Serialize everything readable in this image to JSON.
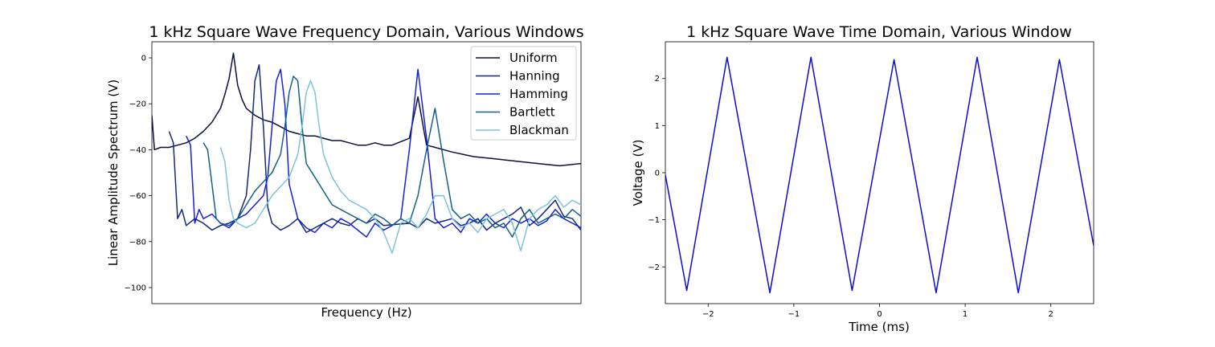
{
  "chart_data": [
    {
      "type": "line",
      "title": "1 kHz Square Wave Frequency Domain, Various Windows",
      "xlabel": "Frequency (Hz)",
      "ylabel": "Linear Amplitude Spectrum (V)",
      "x_ticks_shown": false,
      "xlim": [
        0,
        1
      ],
      "ylim": [
        -107,
        7
      ],
      "y_ticks": [
        0,
        -20,
        -40,
        -60,
        -80,
        -100
      ],
      "grid": false,
      "legend_position": "top-right",
      "series": [
        {
          "name": "Uniform",
          "color": "#0a0f3a",
          "x": [
            0,
            0.006,
            0.02,
            0.04,
            0.06,
            0.08,
            0.1,
            0.12,
            0.14,
            0.16,
            0.17,
            0.18,
            0.19,
            0.2,
            0.205,
            0.21,
            0.22,
            0.24,
            0.26,
            0.28,
            0.3,
            0.32,
            0.34,
            0.36,
            0.38,
            0.4,
            0.42,
            0.44,
            0.46,
            0.48,
            0.5,
            0.52,
            0.54,
            0.56,
            0.6,
            0.62,
            0.64,
            0.66,
            0.7,
            0.75,
            0.8,
            0.85,
            0.9,
            0.95,
            1.0
          ],
          "y": [
            -25,
            -40,
            -39,
            -39,
            -38,
            -37,
            -35,
            -32,
            -28,
            -22,
            -16,
            -9,
            2,
            -12,
            -15,
            -18,
            -22,
            -25,
            -27,
            -28,
            -30,
            -32,
            -33,
            -34,
            -34,
            -35,
            -36,
            -36,
            -37,
            -38,
            -38,
            -37,
            -38,
            -38,
            -35,
            -17,
            -38,
            -39,
            -41,
            -43,
            -44,
            -45,
            -46,
            -47,
            -46
          ]
        },
        {
          "name": "Hanning",
          "color": "#14287a",
          "x": [
            0.04,
            0.05,
            0.06,
            0.07,
            0.08,
            0.1,
            0.12,
            0.14,
            0.16,
            0.18,
            0.2,
            0.22,
            0.23,
            0.24,
            0.25,
            0.26,
            0.27,
            0.28,
            0.3,
            0.32,
            0.34,
            0.36,
            0.38,
            0.4,
            0.42,
            0.44,
            0.46,
            0.48,
            0.5,
            0.52,
            0.54,
            0.6,
            0.62,
            0.64,
            0.66,
            0.68,
            0.7,
            0.72,
            0.74,
            0.76,
            0.78,
            0.8,
            0.82,
            0.84,
            0.86,
            0.88,
            0.9,
            0.92,
            0.94,
            0.96,
            0.98,
            1.0
          ],
          "y": [
            -32,
            -37,
            -70,
            -66,
            -73,
            -70,
            -72,
            -75,
            -73,
            -72,
            -70,
            -60,
            -40,
            -10,
            -3,
            -30,
            -65,
            -72,
            -75,
            -73,
            -70,
            -76,
            -74,
            -72,
            -70,
            -72,
            -73,
            -70,
            -72,
            -70,
            -73,
            -72,
            -74,
            -70,
            -72,
            -71,
            -70,
            -73,
            -72,
            -70,
            -75,
            -72,
            -70,
            -68,
            -65,
            -73,
            -70,
            -66,
            -62,
            -69,
            -70,
            -75
          ]
        },
        {
          "name": "Hamming",
          "color": "#1520d8",
          "x": [
            0.08,
            0.09,
            0.1,
            0.11,
            0.12,
            0.14,
            0.16,
            0.18,
            0.2,
            0.22,
            0.24,
            0.26,
            0.27,
            0.28,
            0.29,
            0.3,
            0.31,
            0.32,
            0.34,
            0.36,
            0.38,
            0.4,
            0.42,
            0.44,
            0.46,
            0.48,
            0.5,
            0.52,
            0.54,
            0.56,
            0.58,
            0.6,
            0.62,
            0.64,
            0.66,
            0.68,
            0.7,
            0.72,
            0.74,
            0.76,
            0.78,
            0.8,
            0.82,
            0.84,
            0.86,
            0.88,
            0.9,
            0.92,
            0.94,
            0.96,
            0.98,
            1.0
          ],
          "y": [
            -34,
            -38,
            -72,
            -66,
            -70,
            -68,
            -72,
            -74,
            -70,
            -68,
            -64,
            -60,
            -52,
            -30,
            -10,
            -5,
            -20,
            -55,
            -70,
            -74,
            -76,
            -72,
            -74,
            -70,
            -72,
            -75,
            -78,
            -72,
            -75,
            -73,
            -70,
            -40,
            -5,
            -35,
            -70,
            -74,
            -72,
            -76,
            -70,
            -72,
            -68,
            -72,
            -74,
            -70,
            -72,
            -70,
            -73,
            -71,
            -66,
            -70,
            -72,
            -74
          ]
        },
        {
          "name": "Bartlett",
          "color": "#12608c",
          "x": [
            0.12,
            0.13,
            0.14,
            0.15,
            0.16,
            0.18,
            0.2,
            0.22,
            0.24,
            0.26,
            0.28,
            0.3,
            0.31,
            0.32,
            0.33,
            0.34,
            0.35,
            0.36,
            0.38,
            0.4,
            0.42,
            0.44,
            0.46,
            0.48,
            0.5,
            0.52,
            0.54,
            0.56,
            0.58,
            0.6,
            0.62,
            0.64,
            0.66,
            0.68,
            0.7,
            0.72,
            0.74,
            0.76,
            0.78,
            0.8,
            0.82,
            0.84,
            0.86,
            0.88,
            0.9,
            0.92,
            0.94,
            0.96,
            0.98,
            1.0
          ],
          "y": [
            -37,
            -40,
            -55,
            -70,
            -72,
            -73,
            -70,
            -64,
            -58,
            -54,
            -50,
            -42,
            -30,
            -15,
            -8,
            -10,
            -30,
            -46,
            -52,
            -58,
            -64,
            -66,
            -68,
            -70,
            -72,
            -68,
            -70,
            -73,
            -70,
            -72,
            -60,
            -40,
            -22,
            -45,
            -66,
            -70,
            -68,
            -72,
            -70,
            -74,
            -72,
            -78,
            -70,
            -66,
            -72,
            -70,
            -68,
            -70,
            -66,
            -69
          ]
        },
        {
          "name": "Blackman",
          "color": "#7cc3de",
          "x": [
            0.16,
            0.17,
            0.18,
            0.19,
            0.2,
            0.22,
            0.24,
            0.26,
            0.28,
            0.3,
            0.32,
            0.34,
            0.35,
            0.36,
            0.37,
            0.38,
            0.39,
            0.4,
            0.42,
            0.44,
            0.46,
            0.48,
            0.5,
            0.52,
            0.54,
            0.56,
            0.58,
            0.6,
            0.62,
            0.64,
            0.66,
            0.68,
            0.7,
            0.72,
            0.74,
            0.76,
            0.78,
            0.8,
            0.82,
            0.84,
            0.86,
            0.88,
            0.9,
            0.92,
            0.94,
            0.96,
            0.98,
            1.0
          ],
          "y": [
            -39,
            -45,
            -62,
            -70,
            -72,
            -74,
            -72,
            -66,
            -60,
            -56,
            -52,
            -42,
            -30,
            -15,
            -10,
            -15,
            -30,
            -42,
            -52,
            -58,
            -62,
            -64,
            -66,
            -70,
            -76,
            -85,
            -72,
            -70,
            -74,
            -68,
            -60,
            -60,
            -70,
            -74,
            -72,
            -76,
            -70,
            -68,
            -66,
            -72,
            -84,
            -70,
            -66,
            -64,
            -60,
            -65,
            -62,
            -64
          ]
        }
      ]
    },
    {
      "type": "line",
      "title": "1 kHz Square Wave Time Domain, Various Window",
      "xlabel": "Time (ms)",
      "ylabel": "Voltage (V)",
      "xlim": [
        -2.5,
        2.5
      ],
      "ylim": [
        -2.78,
        2.78
      ],
      "x_ticks": [
        -2,
        -1,
        0,
        1,
        2
      ],
      "y_ticks": [
        2,
        1,
        0,
        -1,
        -2
      ],
      "grid": false,
      "series": [
        {
          "color": "#0b0bd6",
          "x": [
            -2.5,
            -2.25,
            -1.78,
            -1.28,
            -0.8,
            -0.32,
            0.17,
            0.66,
            1.14,
            1.62,
            2.1,
            2.5
          ],
          "y": [
            -0.05,
            -2.5,
            2.45,
            -2.55,
            2.45,
            -2.5,
            2.4,
            -2.55,
            2.45,
            -2.55,
            2.4,
            -1.55
          ]
        }
      ]
    }
  ],
  "left": {
    "title": "1 kHz Square Wave Frequency Domain, Various Windows",
    "xlabel": "Frequency (Hz)",
    "ylabel": "Linear Amplitude Spectrum (V)",
    "legend": [
      "Uniform",
      "Hanning",
      "Hamming",
      "Bartlett",
      "Blackman"
    ]
  },
  "right": {
    "title": "1 kHz Square Wave Time Domain, Various Window",
    "xlabel": "Time (ms)",
    "ylabel": "Voltage (V)"
  }
}
